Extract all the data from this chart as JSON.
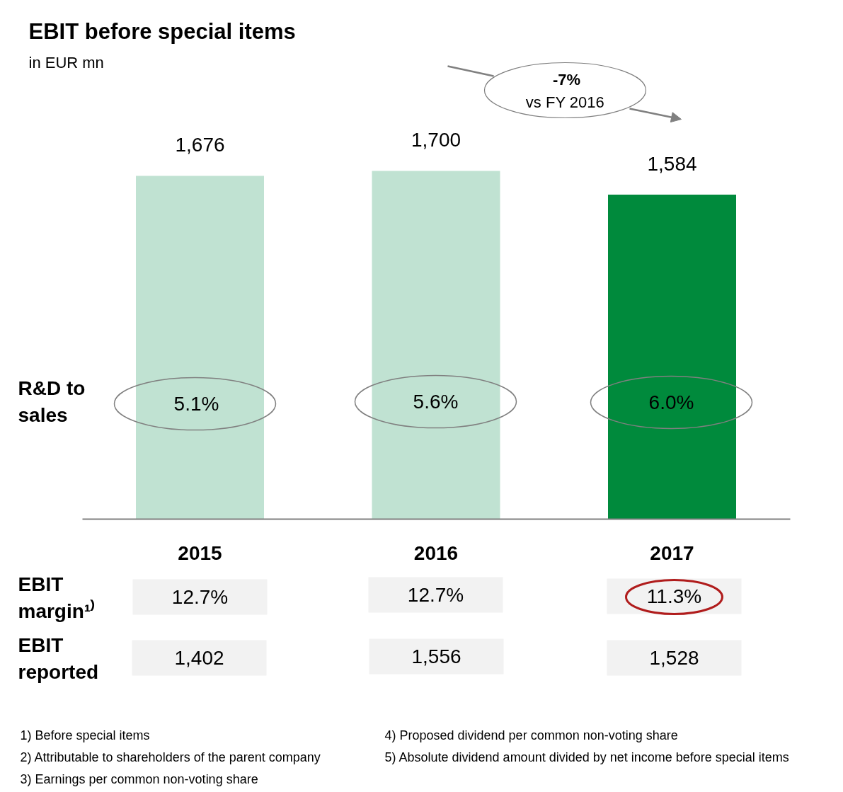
{
  "chart_data": {
    "type": "bar",
    "title": "EBIT before special items",
    "subtitle": "in EUR mn",
    "categories": [
      "2015",
      "2016",
      "2017"
    ],
    "values": [
      1676,
      1700,
      1584
    ],
    "colors": [
      "#c0e2d2",
      "#c0e2d2",
      "#008a3c"
    ],
    "value_labels": [
      "1,676",
      "1,700",
      "1,584"
    ],
    "annotations": [
      "-7%",
      "vs FY 2016",
      "R&D to sales",
      "5.1%",
      "5.6%",
      "6.0%",
      "EBIT margin¹⁾",
      "12.7%",
      "12.7%",
      "11.3%",
      "EBIT reported",
      "1,402",
      "1,556",
      "1,528",
      "1) Before special items",
      "2) Attributable to shareholders of the parent company",
      "3) Earnings per common non-voting share",
      "4) Proposed dividend per common non-voting share",
      "5) Absolute dividend amount divided by net income before special items"
    ]
  }
}
